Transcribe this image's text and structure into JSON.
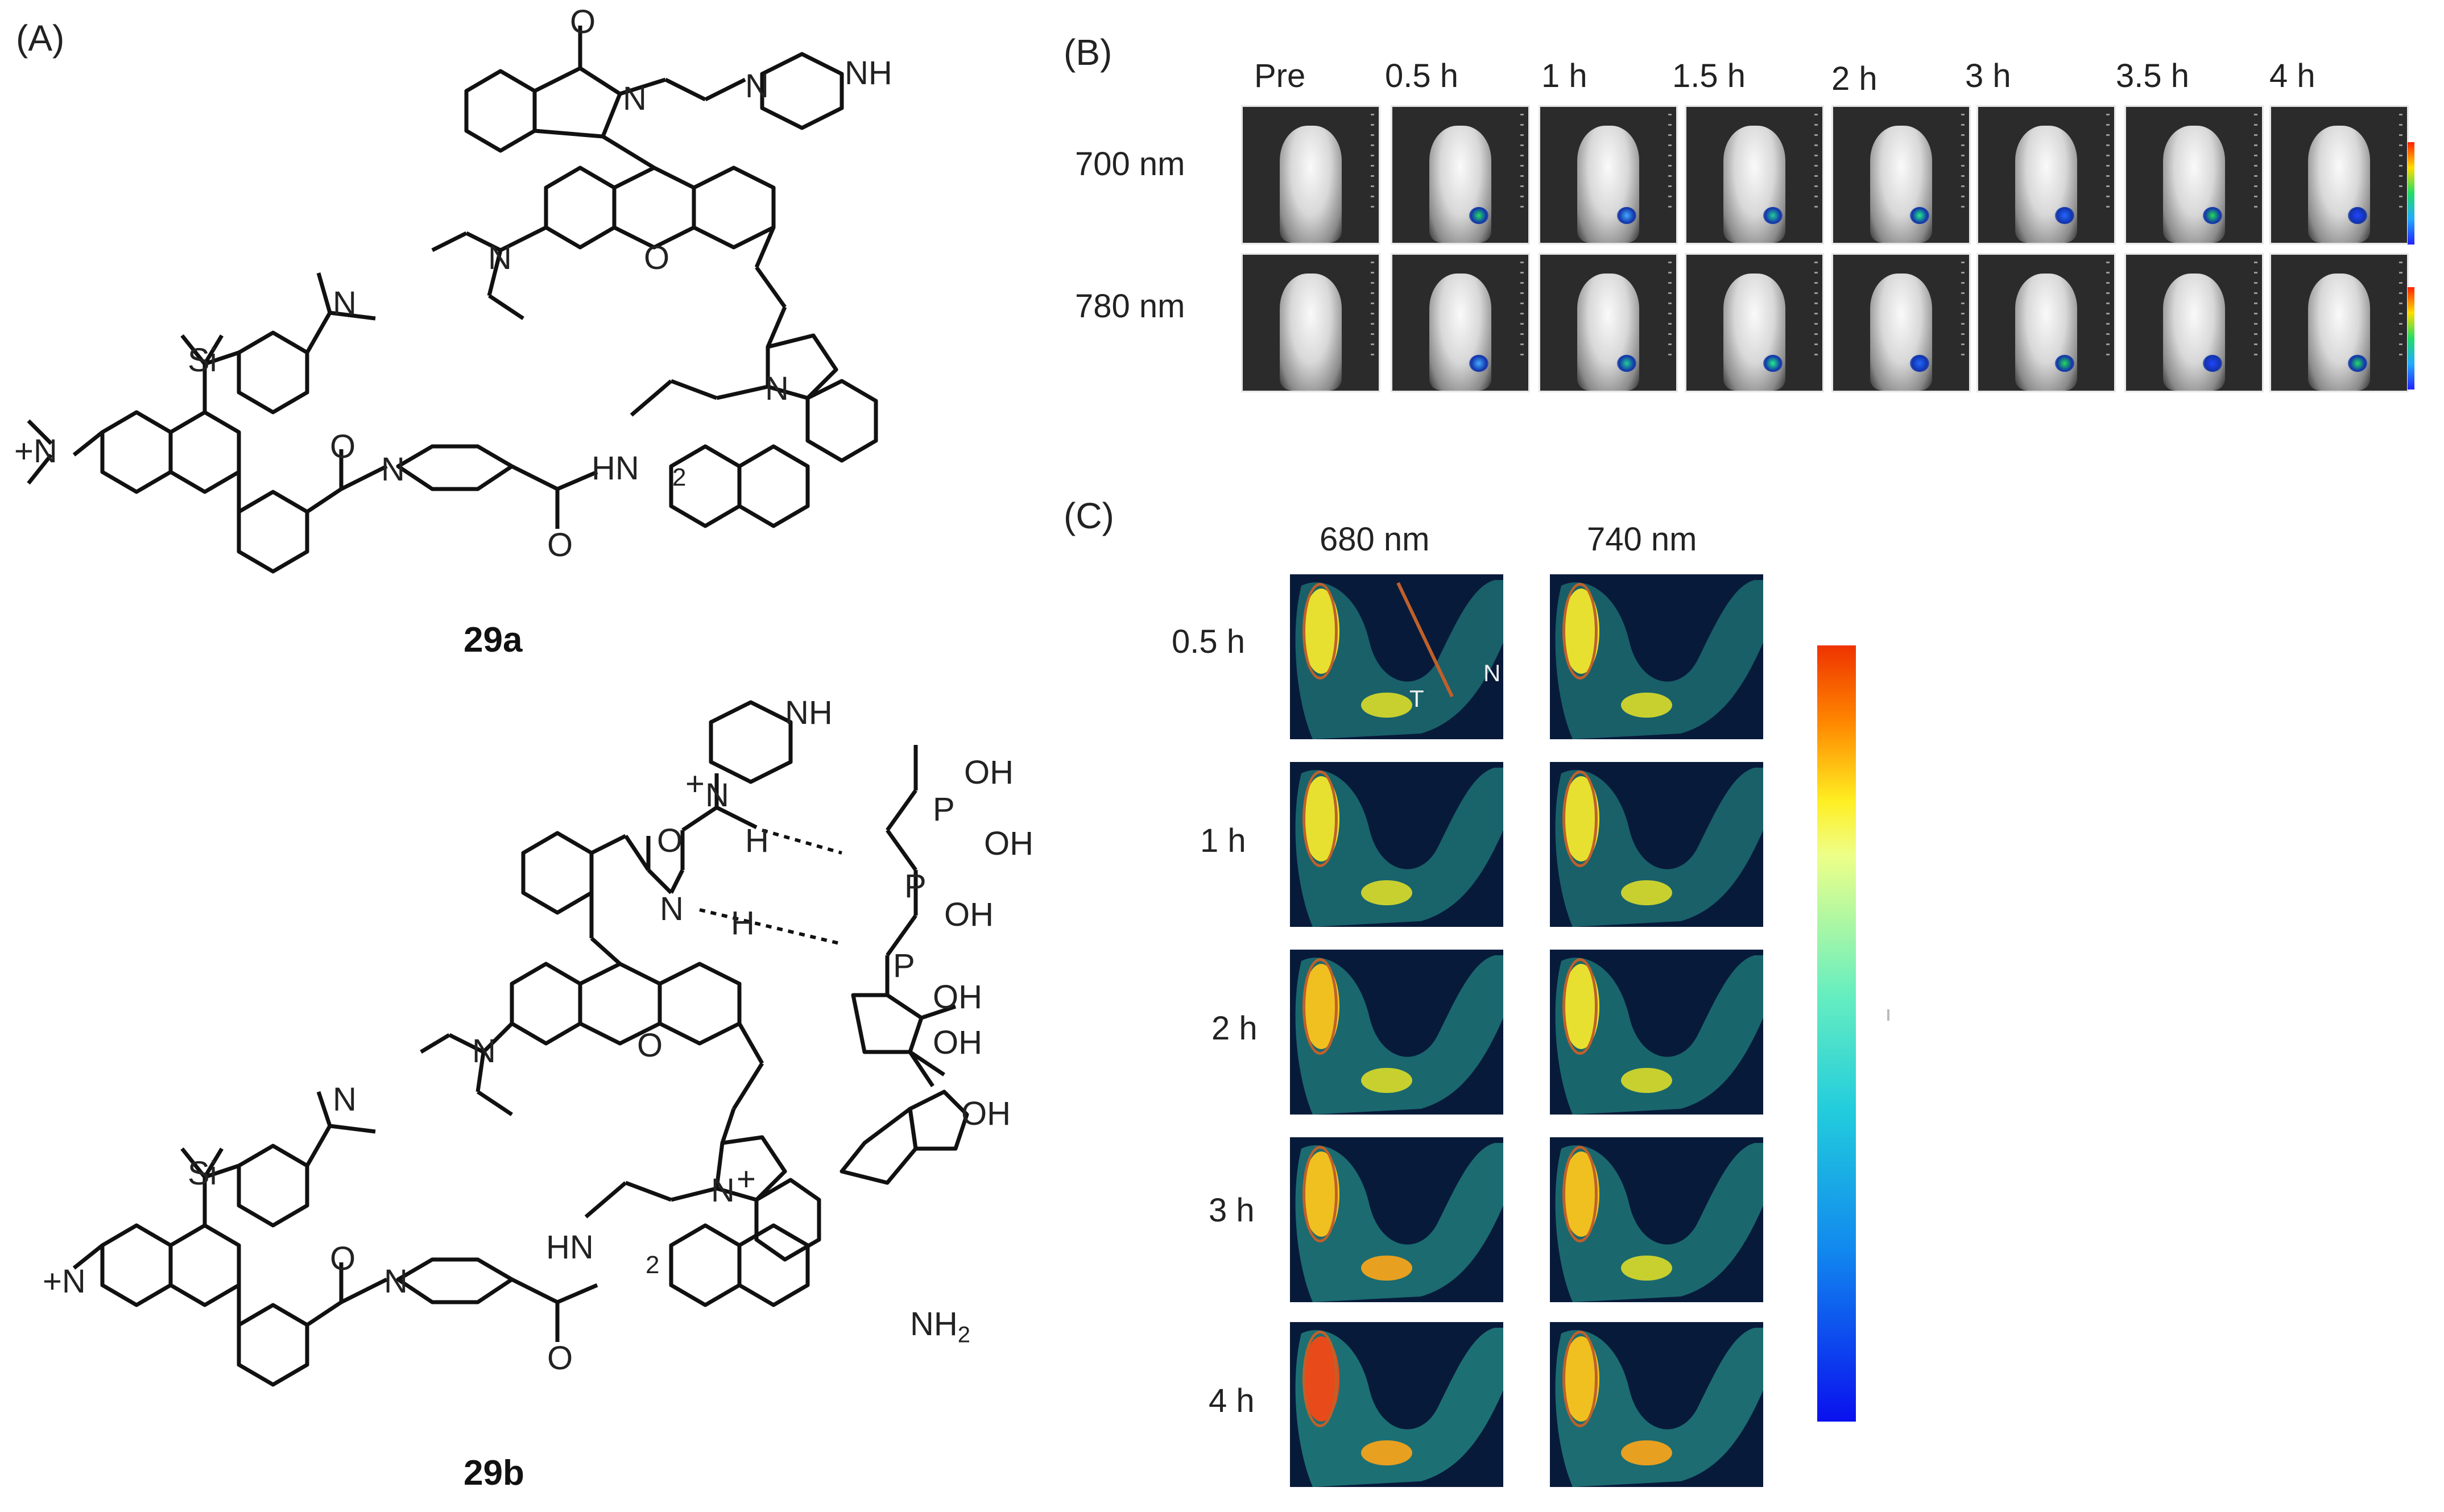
{
  "panel_a": {
    "label": "(A)",
    "compound_1": "29a",
    "compound_2": "29b",
    "atoms": {
      "nh": "NH",
      "n": "N",
      "o": "O",
      "si": "Si",
      "n_plus_left": "+N",
      "hn": "HN",
      "sub2": "2",
      "h": "H",
      "oh": "OH",
      "p": "P",
      "nh2": "NH",
      "nh2_sub": "2",
      "n_plus": "N",
      "plus": "+",
      "o_eq": "O"
    }
  },
  "panel_b": {
    "label": "(B)",
    "time_labels": [
      "Pre",
      "0.5 h",
      "1 h",
      "1.5 h",
      "2 h",
      "3 h",
      "3.5 h",
      "4 h"
    ],
    "row_labels": [
      "700 nm",
      "780 nm"
    ]
  },
  "panel_c": {
    "label": "(C)",
    "column_labels": [
      "680 nm",
      "740 nm"
    ],
    "row_labels": [
      "0.5 h",
      "1 h",
      "2 h",
      "3 h",
      "4 h"
    ],
    "annotation_t": "T",
    "annotation_n": "N",
    "colorbar": [
      "#ee3300",
      "#ff8800",
      "#ffee22",
      "#eeff88",
      "#66eec0",
      "#22ccdd",
      "#1188ee",
      "#0a10ee"
    ]
  }
}
